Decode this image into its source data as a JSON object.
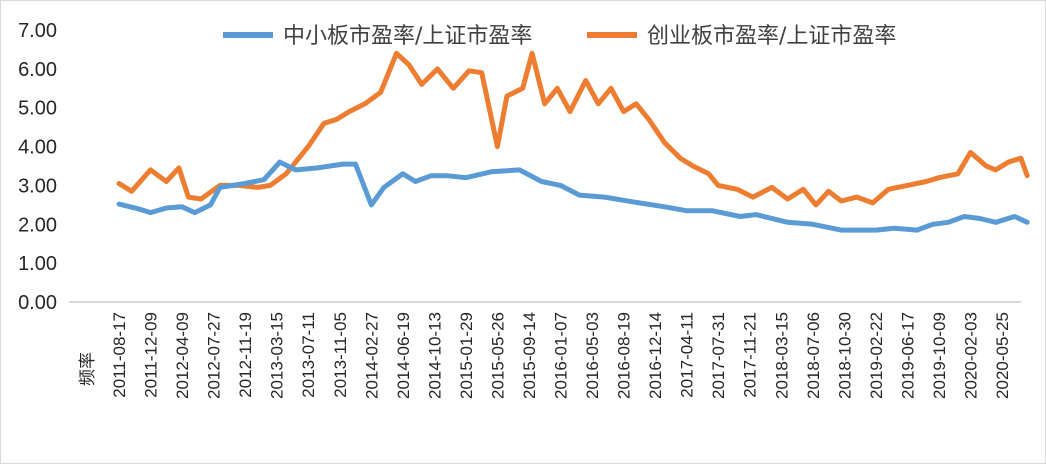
{
  "chart_data": {
    "type": "line",
    "title": "",
    "xlabel": "频率",
    "ylabel": "",
    "ylim": [
      0,
      7
    ],
    "yticks": [
      "0.00",
      "1.00",
      "2.00",
      "3.00",
      "4.00",
      "5.00",
      "6.00",
      "7.00"
    ],
    "categories": [
      "2011-08-17",
      "2011-12-09",
      "2012-04-09",
      "2012-07-27",
      "2012-11-19",
      "2013-03-15",
      "2013-07-11",
      "2013-11-05",
      "2014-02-27",
      "2014-06-19",
      "2014-10-13",
      "2015-01-29",
      "2015-05-26",
      "2015-09-14",
      "2016-01-07",
      "2016-05-03",
      "2016-08-19",
      "2016-12-14",
      "2017-04-11",
      "2017-07-31",
      "2017-11-21",
      "2018-03-15",
      "2018-07-06",
      "2018-10-30",
      "2019-02-22",
      "2019-06-17",
      "2019-10-09",
      "2020-02-03",
      "2020-05-25"
    ],
    "legend_position": "top",
    "series": [
      {
        "name": "中小板市盈率/上证市盈率",
        "color": "#5b9bd5",
        "values": [
          2.52,
          2.4,
          2.3,
          2.42,
          2.45,
          2.3,
          2.5,
          2.95,
          3.05,
          3.15,
          3.6,
          3.4,
          3.45,
          3.55,
          3.55,
          2.5,
          2.95,
          3.3,
          3.1,
          3.25,
          3.25,
          3.2,
          3.35,
          3.4,
          3.1,
          3.0,
          2.75,
          2.7,
          2.55,
          2.45,
          2.35,
          2.35,
          2.2,
          2.25,
          2.05,
          2.0,
          1.85,
          1.85,
          1.85,
          1.9,
          1.85,
          2.0,
          2.05,
          2.2,
          2.15,
          2.05,
          2.2,
          2.05
        ],
        "x": [
          0.0,
          0.6,
          1.0,
          1.5,
          2.0,
          2.4,
          2.9,
          3.2,
          4.0,
          4.6,
          5.1,
          5.6,
          6.3,
          7.1,
          7.5,
          8.0,
          8.4,
          9.0,
          9.4,
          9.9,
          10.4,
          11.0,
          11.8,
          12.7,
          13.4,
          14.0,
          14.6,
          15.4,
          16.5,
          17.3,
          18.0,
          18.8,
          19.7,
          20.2,
          21.2,
          22.0,
          22.9,
          23.5,
          24.0,
          24.6,
          25.3,
          25.8,
          26.3,
          26.8,
          27.3,
          27.8,
          28.4,
          28.8
        ]
      },
      {
        "name": "创业板市盈率/上证市盈率",
        "color": "#ed7d31",
        "values": [
          3.05,
          2.85,
          3.4,
          3.1,
          3.45,
          2.7,
          2.65,
          3.0,
          3.0,
          2.95,
          3.0,
          3.3,
          4.0,
          4.6,
          4.7,
          4.9,
          5.1,
          5.4,
          6.4,
          6.1,
          5.6,
          6.0,
          5.5,
          5.95,
          5.9,
          4.0,
          5.3,
          5.5,
          6.4,
          5.1,
          5.5,
          4.9,
          5.7,
          5.1,
          5.5,
          4.9,
          5.1,
          4.7,
          4.1,
          3.7,
          3.5,
          3.3,
          3.0,
          2.9,
          2.7,
          2.95,
          2.65,
          2.9,
          2.5,
          2.85,
          2.6,
          2.7,
          2.55,
          2.9,
          3.0,
          3.1,
          3.2,
          3.3,
          3.85,
          3.5,
          3.4,
          3.6,
          3.7,
          3.25
        ],
        "x": [
          0.0,
          0.4,
          1.0,
          1.5,
          1.9,
          2.2,
          2.6,
          3.2,
          3.8,
          4.4,
          4.8,
          5.3,
          6.0,
          6.5,
          6.9,
          7.3,
          7.8,
          8.3,
          8.8,
          9.2,
          9.6,
          10.1,
          10.6,
          11.1,
          11.5,
          12.0,
          12.3,
          12.8,
          13.1,
          13.5,
          13.9,
          14.3,
          14.8,
          15.2,
          15.6,
          16.0,
          16.4,
          16.8,
          17.3,
          17.8,
          18.2,
          18.7,
          19.0,
          19.6,
          20.1,
          20.7,
          21.2,
          21.7,
          22.1,
          22.5,
          22.9,
          23.4,
          23.9,
          24.4,
          25.0,
          25.6,
          26.0,
          26.6,
          27.0,
          27.5,
          27.8,
          28.2,
          28.6,
          28.8
        ]
      }
    ]
  }
}
